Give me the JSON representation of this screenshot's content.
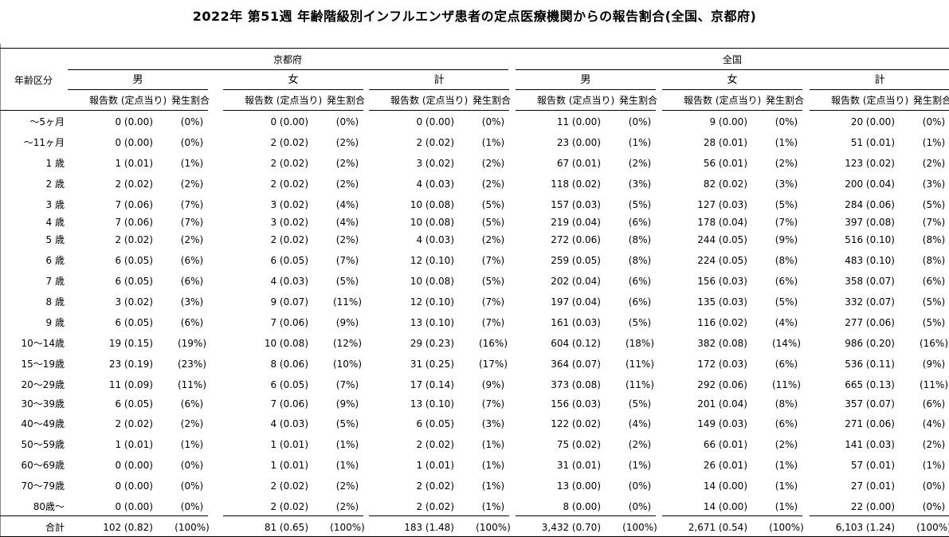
{
  "title": "2022年 第51週  年齢階級別インフルエンザ患者の定点医療機関からの報告割合(全国、京都府)",
  "header": {
    "age_label": "年齢区分",
    "regions": [
      "京都府",
      "全国"
    ],
    "sexes": [
      "男",
      "女",
      "計"
    ],
    "count_header": "報告数 (定点当り)",
    "pct_header": "発生割合"
  },
  "rows": [
    {
      "label": "～5ヶ月",
      "cells": [
        [
          "0 (0.00)",
          "(0%)"
        ],
        [
          "0 (0.00)",
          "(0%)"
        ],
        [
          "0 (0.00)",
          "(0%)"
        ],
        [
          "11 (0.00)",
          "(0%)"
        ],
        [
          "9 (0.00)",
          "(0%)"
        ],
        [
          "20 (0.00)",
          "(0%)"
        ]
      ]
    },
    {
      "label": "～11ヶ月",
      "cells": [
        [
          "0 (0.00)",
          "(0%)"
        ],
        [
          "2 (0.02)",
          "(2%)"
        ],
        [
          "2 (0.02)",
          "(1%)"
        ],
        [
          "23 (0.00)",
          "(1%)"
        ],
        [
          "28 (0.01)",
          "(1%)"
        ],
        [
          "51 (0.01)",
          "(1%)"
        ]
      ]
    },
    {
      "label": "1 歳",
      "cells": [
        [
          "1 (0.01)",
          "(1%)"
        ],
        [
          "2 (0.02)",
          "(2%)"
        ],
        [
          "3 (0.02)",
          "(2%)"
        ],
        [
          "67 (0.01)",
          "(2%)"
        ],
        [
          "56 (0.01)",
          "(2%)"
        ],
        [
          "123 (0.02)",
          "(2%)"
        ]
      ]
    },
    {
      "label": "2 歳",
      "cells": [
        [
          "2 (0.02)",
          "(2%)"
        ],
        [
          "2 (0.02)",
          "(2%)"
        ],
        [
          "4 (0.03)",
          "(2%)"
        ],
        [
          "118 (0.02)",
          "(3%)"
        ],
        [
          "82 (0.02)",
          "(3%)"
        ],
        [
          "200 (0.04)",
          "(3%)"
        ]
      ]
    },
    {
      "label": "3 歳",
      "cells": [
        [
          "7 (0.06)",
          "(7%)"
        ],
        [
          "3 (0.02)",
          "(4%)"
        ],
        [
          "10 (0.08)",
          "(5%)"
        ],
        [
          "157 (0.03)",
          "(5%)"
        ],
        [
          "127 (0.03)",
          "(5%)"
        ],
        [
          "284 (0.06)",
          "(5%)"
        ]
      ]
    },
    {
      "label": "4 歳",
      "cells": [
        [
          "7 (0.06)",
          "(7%)"
        ],
        [
          "3 (0.02)",
          "(4%)"
        ],
        [
          "10 (0.08)",
          "(5%)"
        ],
        [
          "219 (0.04)",
          "(6%)"
        ],
        [
          "178 (0.04)",
          "(7%)"
        ],
        [
          "397 (0.08)",
          "(7%)"
        ]
      ]
    },
    {
      "label": "5 歳",
      "cells": [
        [
          "2 (0.02)",
          "(2%)"
        ],
        [
          "2 (0.02)",
          "(2%)"
        ],
        [
          "4 (0.03)",
          "(2%)"
        ],
        [
          "272 (0.06)",
          "(8%)"
        ],
        [
          "244 (0.05)",
          "(9%)"
        ],
        [
          "516 (0.10)",
          "(8%)"
        ]
      ]
    },
    {
      "label": "6 歳",
      "cells": [
        [
          "6 (0.05)",
          "(6%)"
        ],
        [
          "6 (0.05)",
          "(7%)"
        ],
        [
          "12 (0.10)",
          "(7%)"
        ],
        [
          "259 (0.05)",
          "(8%)"
        ],
        [
          "224 (0.05)",
          "(8%)"
        ],
        [
          "483 (0.10)",
          "(8%)"
        ]
      ]
    },
    {
      "label": "7 歳",
      "cells": [
        [
          "6 (0.05)",
          "(6%)"
        ],
        [
          "4 (0.03)",
          "(5%)"
        ],
        [
          "10 (0.08)",
          "(5%)"
        ],
        [
          "202 (0.04)",
          "(6%)"
        ],
        [
          "156 (0.03)",
          "(6%)"
        ],
        [
          "358 (0.07)",
          "(6%)"
        ]
      ]
    },
    {
      "label": "8 歳",
      "cells": [
        [
          "3 (0.02)",
          "(3%)"
        ],
        [
          "9 (0.07)",
          "(11%)"
        ],
        [
          "12 (0.10)",
          "(7%)"
        ],
        [
          "197 (0.04)",
          "(6%)"
        ],
        [
          "135 (0.03)",
          "(5%)"
        ],
        [
          "332 (0.07)",
          "(5%)"
        ]
      ]
    },
    {
      "label": "9 歳",
      "cells": [
        [
          "6 (0.05)",
          "(6%)"
        ],
        [
          "7 (0.06)",
          "(9%)"
        ],
        [
          "13 (0.10)",
          "(7%)"
        ],
        [
          "161 (0.03)",
          "(5%)"
        ],
        [
          "116 (0.02)",
          "(4%)"
        ],
        [
          "277 (0.06)",
          "(5%)"
        ]
      ]
    },
    {
      "label": "10～14歳",
      "cells": [
        [
          "19 (0.15)",
          "(19%)"
        ],
        [
          "10 (0.08)",
          "(12%)"
        ],
        [
          "29 (0.23)",
          "(16%)"
        ],
        [
          "604 (0.12)",
          "(18%)"
        ],
        [
          "382 (0.08)",
          "(14%)"
        ],
        [
          "986 (0.20)",
          "(16%)"
        ]
      ]
    },
    {
      "label": "15～19歳",
      "cells": [
        [
          "23 (0.19)",
          "(23%)"
        ],
        [
          "8 (0.06)",
          "(10%)"
        ],
        [
          "31 (0.25)",
          "(17%)"
        ],
        [
          "364 (0.07)",
          "(11%)"
        ],
        [
          "172 (0.03)",
          "(6%)"
        ],
        [
          "536 (0.11)",
          "(9%)"
        ]
      ]
    },
    {
      "label": "20～29歳",
      "cells": [
        [
          "11 (0.09)",
          "(11%)"
        ],
        [
          "6 (0.05)",
          "(7%)"
        ],
        [
          "17 (0.14)",
          "(9%)"
        ],
        [
          "373 (0.08)",
          "(11%)"
        ],
        [
          "292 (0.06)",
          "(11%)"
        ],
        [
          "665 (0.13)",
          "(11%)"
        ]
      ]
    },
    {
      "label": "30～39歳",
      "cells": [
        [
          "6 (0.05)",
          "(6%)"
        ],
        [
          "7 (0.06)",
          "(9%)"
        ],
        [
          "13 (0.10)",
          "(7%)"
        ],
        [
          "156 (0.03)",
          "(5%)"
        ],
        [
          "201 (0.04)",
          "(8%)"
        ],
        [
          "357 (0.07)",
          "(6%)"
        ]
      ]
    },
    {
      "label": "40～49歳",
      "cells": [
        [
          "2 (0.02)",
          "(2%)"
        ],
        [
          "4 (0.03)",
          "(5%)"
        ],
        [
          "6 (0.05)",
          "(3%)"
        ],
        [
          "122 (0.02)",
          "(4%)"
        ],
        [
          "149 (0.03)",
          "(6%)"
        ],
        [
          "271 (0.06)",
          "(4%)"
        ]
      ]
    },
    {
      "label": "50～59歳",
      "cells": [
        [
          "1 (0.01)",
          "(1%)"
        ],
        [
          "1 (0.01)",
          "(1%)"
        ],
        [
          "2 (0.02)",
          "(1%)"
        ],
        [
          "75 (0.02)",
          "(2%)"
        ],
        [
          "66 (0.01)",
          "(2%)"
        ],
        [
          "141 (0.03)",
          "(2%)"
        ]
      ]
    },
    {
      "label": "60～69歳",
      "cells": [
        [
          "0 (0.00)",
          "(0%)"
        ],
        [
          "1 (0.01)",
          "(1%)"
        ],
        [
          "1 (0.01)",
          "(1%)"
        ],
        [
          "31 (0.01)",
          "(1%)"
        ],
        [
          "26 (0.01)",
          "(1%)"
        ],
        [
          "57 (0.01)",
          "(1%)"
        ]
      ]
    },
    {
      "label": "70～79歳",
      "cells": [
        [
          "0 (0.00)",
          "(0%)"
        ],
        [
          "2 (0.02)",
          "(2%)"
        ],
        [
          "2 (0.02)",
          "(1%)"
        ],
        [
          "13 (0.00)",
          "(0%)"
        ],
        [
          "14 (0.00)",
          "(1%)"
        ],
        [
          "27 (0.01)",
          "(0%)"
        ]
      ]
    },
    {
      "label": "80歳～",
      "cells": [
        [
          "0 (0.00)",
          "(0%)"
        ],
        [
          "2 (0.02)",
          "(2%)"
        ],
        [
          "2 (0.02)",
          "(1%)"
        ],
        [
          "8 (0.00)",
          "(0%)"
        ],
        [
          "14 (0.00)",
          "(1%)"
        ],
        [
          "22 (0.00)",
          "(0%)"
        ]
      ]
    }
  ],
  "total": {
    "label": "合計",
    "cells": [
      [
        "102 (0.82)",
        "(100%)"
      ],
      [
        "81 (0.65)",
        "(100%)"
      ],
      [
        "183 (1.48)",
        "(100%)"
      ],
      [
        "3,432 (0.70)",
        "(100%)"
      ],
      [
        "2,671 (0.54)",
        "(100%)"
      ],
      [
        "6,103 (1.24)",
        "(100%)"
      ]
    ]
  }
}
